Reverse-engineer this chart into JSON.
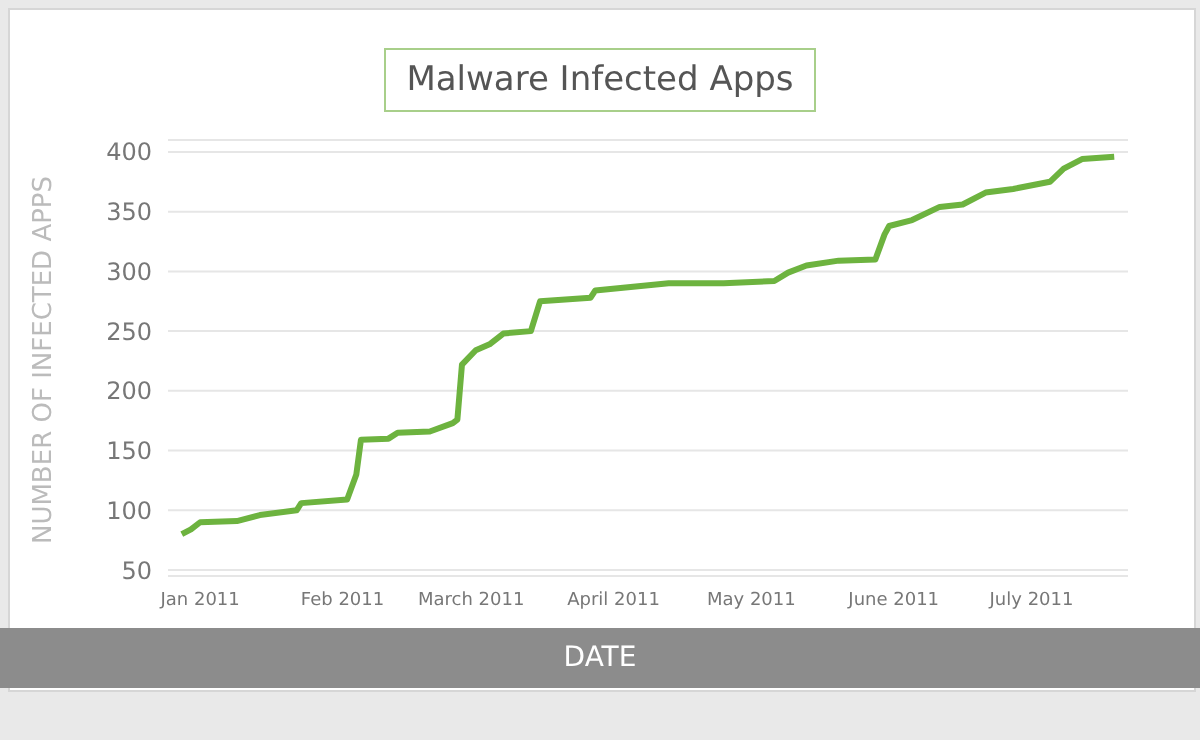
{
  "chart_data": {
    "type": "line",
    "title": "Malware Infected Apps",
    "xlabel": "DATE",
    "ylabel": "NUMBER OF INFECTED APPS",
    "x": [
      "2010-12-28",
      "2010-12-30",
      "2011-01-01",
      "2011-01-09",
      "2011-01-14",
      "2011-01-22",
      "2011-01-23",
      "2011-02-02",
      "2011-02-04",
      "2011-02-05",
      "2011-02-11",
      "2011-02-13",
      "2011-02-20",
      "2011-02-25",
      "2011-02-26",
      "2011-02-27",
      "2011-03-02",
      "2011-03-05",
      "2011-03-08",
      "2011-03-14",
      "2011-03-16",
      "2011-03-27",
      "2011-03-28",
      "2011-04-13",
      "2011-04-25",
      "2011-05-06",
      "2011-05-09",
      "2011-05-13",
      "2011-05-20",
      "2011-05-28",
      "2011-05-30",
      "2011-05-31",
      "2011-06-05",
      "2011-06-11",
      "2011-06-16",
      "2011-06-21",
      "2011-06-27",
      "2011-07-05",
      "2011-07-08",
      "2011-07-12",
      "2011-07-19"
    ],
    "series": [
      {
        "color": "#6db33f",
        "values": [
          80,
          84,
          90,
          91,
          96,
          100,
          106,
          109,
          130,
          159,
          160,
          165,
          166,
          173,
          176,
          222,
          234,
          239,
          248,
          250,
          275,
          278,
          284,
          290,
          290,
          292,
          299,
          305,
          309,
          310,
          331,
          338,
          343,
          354,
          356,
          366,
          369,
          375,
          386,
          394,
          396
        ]
      }
    ],
    "xlim": [
      "2010-12-25",
      "2011-07-22"
    ],
    "xticks": [
      {
        "value": "2011-01-01",
        "label": "Jan 2011"
      },
      {
        "value": "2011-02-01",
        "label": "Feb 2011"
      },
      {
        "value": "2011-03-01",
        "label": "March 2011"
      },
      {
        "value": "2011-04-01",
        "label": "April 2011"
      },
      {
        "value": "2011-05-01",
        "label": "May 2011"
      },
      {
        "value": "2011-06-01",
        "label": "June 2011"
      },
      {
        "value": "2011-07-01",
        "label": "July 2011"
      }
    ],
    "ylim": [
      45,
      410
    ],
    "yticks": [
      50,
      100,
      150,
      200,
      250,
      300,
      350,
      400
    ],
    "grid": "y",
    "marker": "none",
    "line_style": "solid",
    "legend": false
  }
}
